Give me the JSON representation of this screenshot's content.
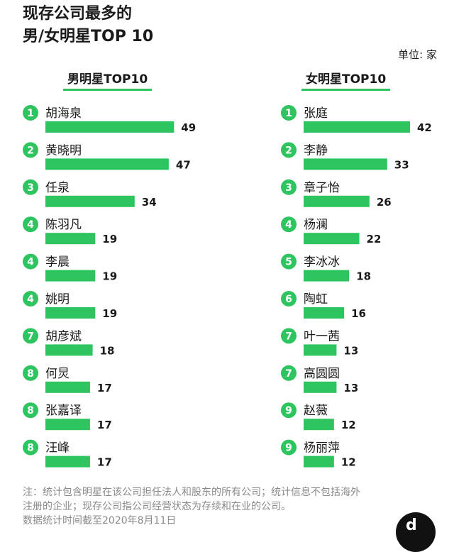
{
  "title_line1": "现存公司最多的",
  "title_line2": "男/女明星TOP 10",
  "unit": "单位: 家",
  "footnote_line1": "注：统计包含明星在该公司担任法人和股东的所有公司；统计信息不包括海外",
  "footnote_line2": "注册的企业；现存公司指公司经营状态为存续和在业的公司。",
  "footnote_line3": "数据统计时间截至2020年8月11日",
  "colors": {
    "bar": "#2ec45f",
    "badge": "#2ec45f"
  },
  "chart_data": [
    {
      "type": "bar",
      "title": "男明星TOP10",
      "orientation": "horizontal",
      "ranks": [
        1,
        2,
        3,
        4,
        4,
        4,
        7,
        8,
        8,
        8
      ],
      "categories": [
        "胡海泉",
        "黄晓明",
        "任泉",
        "陈羽凡",
        "李晨",
        "姚明",
        "胡彦斌",
        "何炅",
        "张嘉译",
        "汪峰"
      ],
      "values": [
        49,
        47,
        34,
        19,
        19,
        19,
        18,
        17,
        17,
        17
      ]
    },
    {
      "type": "bar",
      "title": "女明星TOP10",
      "orientation": "horizontal",
      "ranks": [
        1,
        2,
        3,
        4,
        5,
        6,
        7,
        7,
        9,
        9
      ],
      "categories": [
        "张庭",
        "李静",
        "章子怡",
        "杨澜",
        "李冰冰",
        "陶虹",
        "叶一茜",
        "高圆圆",
        "赵薇",
        "杨丽萍"
      ],
      "values": [
        42,
        33,
        26,
        22,
        18,
        16,
        13,
        13,
        12,
        12
      ]
    }
  ]
}
